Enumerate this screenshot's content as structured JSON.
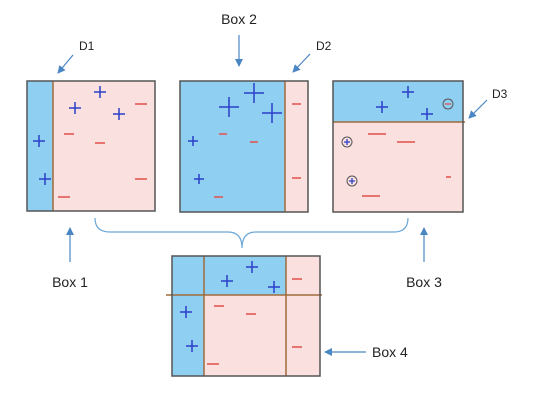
{
  "labels": {
    "box1": "Box 1",
    "box2": "Box 2",
    "box3": "Box 3",
    "box4": "Box 4",
    "d1": "D1",
    "d2": "D2",
    "d3": "D3"
  },
  "colors": {
    "positive_region": "#8fd0f2",
    "negative_region": "#fbe0e0",
    "plus": "#2b3fc8",
    "minus": "#e2504a",
    "box_border": "#555555",
    "divider": "#a06a3a",
    "bracket": "#6aa6d6",
    "arrow": "#4a86c4"
  }
}
